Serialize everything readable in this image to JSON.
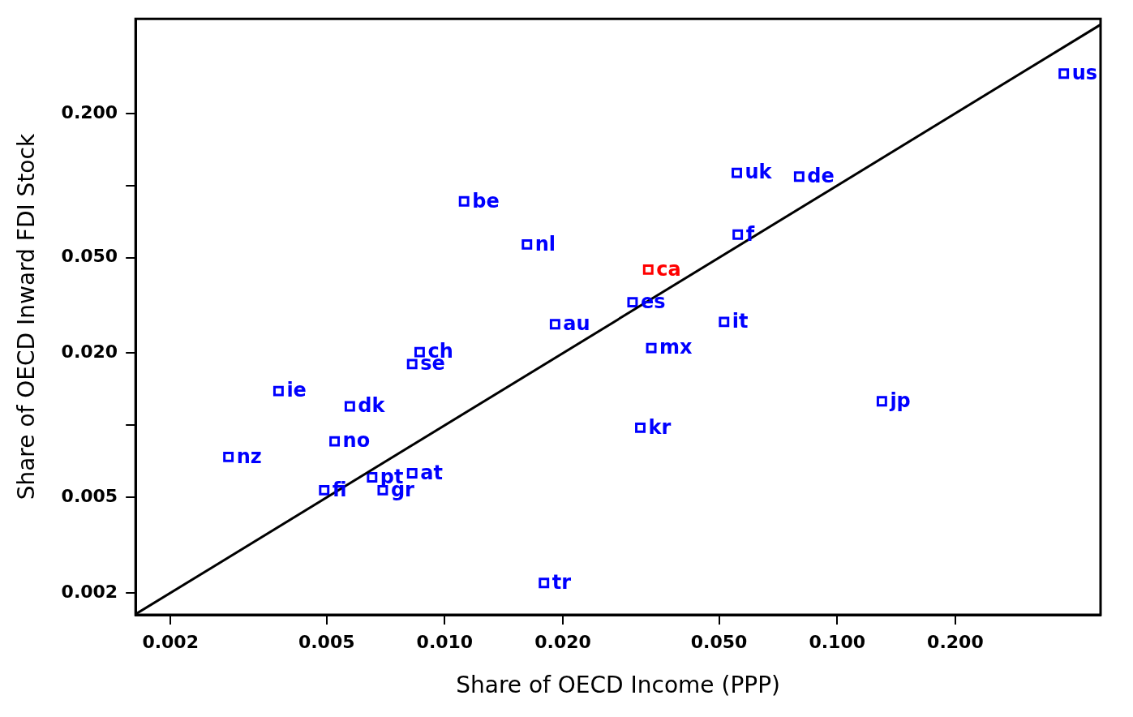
{
  "chart_data": {
    "type": "scatter",
    "xlabel": "Share of OECD Income (PPP)",
    "ylabel": "Share of OECD Inward FDI Stock",
    "log": "xy",
    "grid": false,
    "legend": false,
    "marker": "square",
    "xlim": [
      0.00163,
      0.469
    ],
    "ylim": [
      0.00162,
      0.496
    ],
    "xticks": [
      0.002,
      0.005,
      {
        "value": 0.01,
        "label": "0.010"
      },
      {
        "value": 0.02,
        "label": "0.020"
      },
      {
        "value": 0.05,
        "label": "0.050"
      },
      {
        "value": 0.1,
        "label": "0.100"
      },
      {
        "value": 0.2,
        "label": "0.200"
      }
    ],
    "yticks": [
      0.002,
      0.005,
      {
        "value": 0.01,
        "label": null
      },
      {
        "value": 0.02,
        "label": "0.020"
      },
      {
        "value": 0.05,
        "label": "0.050"
      },
      {
        "value": 0.1,
        "label": null
      },
      {
        "value": 0.2,
        "label": "0.200"
      }
    ],
    "series": [
      {
        "type": "line",
        "marker": "none",
        "color": "#000000",
        "x": [
          0.00163,
          0.469
        ],
        "values": [
          0.00163,
          0.469
        ]
      },
      {
        "name": "us",
        "color": "#0000ff",
        "x": [
          0.378
        ],
        "values": [
          0.293
        ]
      },
      {
        "name": "uk",
        "color": "#0000ff",
        "x": [
          0.0555
        ],
        "values": [
          0.113
        ]
      },
      {
        "name": "de",
        "color": "#0000ff",
        "x": [
          0.08
        ],
        "values": [
          0.109
        ]
      },
      {
        "name": "f",
        "color": "#0000ff",
        "x": [
          0.0558
        ],
        "values": [
          0.0624
        ]
      },
      {
        "name": "be",
        "color": "#0000ff",
        "x": [
          0.0112
        ],
        "values": [
          0.0859
        ]
      },
      {
        "name": "nl",
        "color": "#0000ff",
        "x": [
          0.0162
        ],
        "values": [
          0.0568
        ]
      },
      {
        "name": "ca",
        "color": "#ff0000",
        "x": [
          0.033
        ],
        "values": [
          0.0446
        ]
      },
      {
        "name": "es",
        "color": "#0000ff",
        "x": [
          0.0301
        ],
        "values": [
          0.0326
        ]
      },
      {
        "name": "au",
        "color": "#0000ff",
        "x": [
          0.0191
        ],
        "values": [
          0.0264
        ]
      },
      {
        "name": "it",
        "color": "#0000ff",
        "x": [
          0.0515
        ],
        "values": [
          0.027
        ]
      },
      {
        "name": "mx",
        "color": "#0000ff",
        "x": [
          0.0336
        ],
        "values": [
          0.021
        ]
      },
      {
        "name": "kr",
        "color": "#0000ff",
        "x": [
          0.0315
        ],
        "values": [
          0.00977
        ]
      },
      {
        "name": "tr",
        "color": "#0000ff",
        "x": [
          0.0179
        ],
        "values": [
          0.0022
        ]
      },
      {
        "name": "jp",
        "color": "#0000ff",
        "x": [
          0.13
        ],
        "values": [
          0.0126
        ]
      },
      {
        "name": "ch",
        "color": "#0000ff",
        "x": [
          0.00863
        ],
        "values": [
          0.0202
        ]
      },
      {
        "name": "se",
        "color": "#0000ff",
        "x": [
          0.00826
        ],
        "values": [
          0.018
        ]
      },
      {
        "name": "ie",
        "color": "#0000ff",
        "x": [
          0.00377
        ],
        "values": [
          0.0139
        ]
      },
      {
        "name": "dk",
        "color": "#0000ff",
        "x": [
          0.00573
        ],
        "values": [
          0.012
        ]
      },
      {
        "name": "no",
        "color": "#0000ff",
        "x": [
          0.00524
        ],
        "values": [
          0.00857
        ]
      },
      {
        "name": "nz",
        "color": "#0000ff",
        "x": [
          0.00281
        ],
        "values": [
          0.00738
        ]
      },
      {
        "name": "fi",
        "color": "#0000ff",
        "x": [
          0.00493
        ],
        "values": [
          0.00536
        ]
      },
      {
        "name": "pt",
        "color": "#0000ff",
        "x": [
          0.00653
        ],
        "values": [
          0.00607
        ]
      },
      {
        "name": "at",
        "color": "#0000ff",
        "x": [
          0.00826
        ],
        "values": [
          0.00631
        ]
      },
      {
        "name": "gr",
        "color": "#0000ff",
        "x": [
          0.00695
        ],
        "values": [
          0.00536
        ]
      }
    ]
  }
}
